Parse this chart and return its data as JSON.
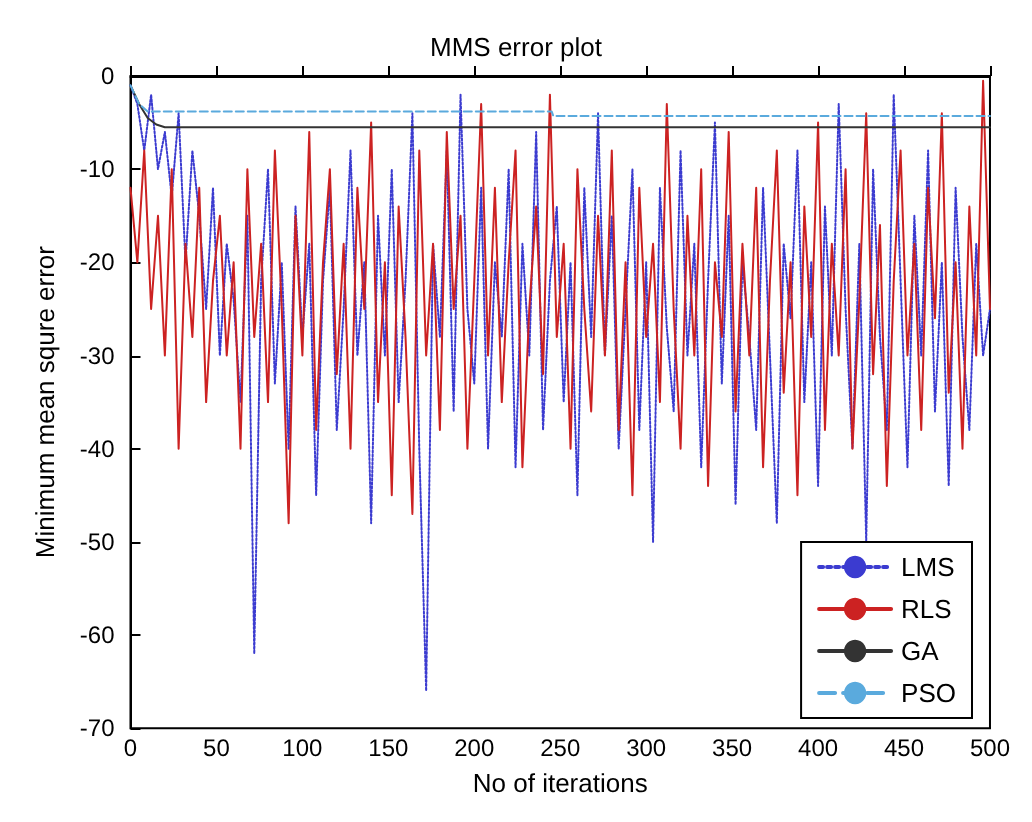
{
  "chart_data": {
    "type": "line",
    "title": "MMS error plot",
    "xlabel": "No of iterations",
    "ylabel": "Minimum mean squre error",
    "x": [
      0,
      4,
      8,
      12,
      16,
      20,
      24,
      28,
      32,
      36,
      40,
      44,
      48,
      52,
      56,
      60,
      64,
      68,
      72,
      76,
      80,
      84,
      88,
      92,
      96,
      100,
      104,
      108,
      112,
      116,
      120,
      124,
      128,
      132,
      136,
      140,
      144,
      148,
      152,
      156,
      160,
      164,
      168,
      172,
      176,
      180,
      184,
      188,
      192,
      196,
      200,
      204,
      208,
      212,
      216,
      220,
      224,
      228,
      232,
      236,
      240,
      244,
      248,
      252,
      256,
      260,
      264,
      268,
      272,
      276,
      280,
      284,
      288,
      292,
      296,
      300,
      304,
      308,
      312,
      316,
      320,
      324,
      328,
      332,
      336,
      340,
      344,
      348,
      352,
      356,
      360,
      364,
      368,
      372,
      376,
      380,
      384,
      388,
      392,
      396,
      400,
      404,
      408,
      412,
      416,
      420,
      424,
      428,
      432,
      436,
      440,
      444,
      448,
      452,
      456,
      460,
      464,
      468,
      472,
      476,
      480,
      484,
      488,
      492,
      496,
      500
    ],
    "series": [
      {
        "name": "LMS",
        "color": "#3b3bd0",
        "line_style": "dotted",
        "values": [
          -1,
          -3,
          -8,
          -2,
          -10,
          -6,
          -13,
          -4,
          -20,
          -8,
          -15,
          -25,
          -12,
          -30,
          -18,
          -24,
          -35,
          -15,
          -62,
          -22,
          -10,
          -33,
          -20,
          -40,
          -14,
          -28,
          -18,
          -45,
          -22,
          -12,
          -38,
          -25,
          -8,
          -30,
          -20,
          -48,
          -15,
          -30,
          -10,
          -35,
          -22,
          -4,
          -40,
          -66,
          -18,
          -28,
          -8,
          -36,
          -2,
          -25,
          -33,
          -12,
          -40,
          -20,
          -28,
          -10,
          -42,
          -18,
          -30,
          -6,
          -38,
          -22,
          -14,
          -35,
          -20,
          -45,
          -12,
          -28,
          -4,
          -30,
          -15,
          -40,
          -25,
          -10,
          -38,
          -20,
          -50,
          -12,
          -27,
          -36,
          -8,
          -30,
          -18,
          -42,
          -22,
          -5,
          -33,
          -15,
          -46,
          -20,
          -28,
          -38,
          -12,
          -30,
          -48,
          -18,
          -26,
          -8,
          -35,
          -20,
          -44,
          -14,
          -30,
          -3,
          -25,
          -40,
          -18,
          -50,
          -10,
          -28,
          -38,
          -2,
          -22,
          -42,
          -15,
          -30,
          -8,
          -36,
          -20,
          -44,
          -12,
          -28,
          -38,
          -18,
          -30,
          -25
        ]
      },
      {
        "name": "RLS",
        "color": "#cc2222",
        "line_style": "solid",
        "values": [
          -12,
          -20,
          -8,
          -25,
          -15,
          -30,
          -10,
          -40,
          -18,
          -28,
          -12,
          -35,
          -22,
          -15,
          -30,
          -20,
          -40,
          -10,
          -28,
          -18,
          -35,
          -8,
          -25,
          -48,
          -15,
          -30,
          -6,
          -38,
          -20,
          -10,
          -32,
          -18,
          -40,
          -12,
          -25,
          -5,
          -35,
          -20,
          -45,
          -14,
          -28,
          -47,
          -8,
          -30,
          -18,
          -38,
          -6,
          -25,
          -15,
          -40,
          -22,
          -3,
          -30,
          -12,
          -35,
          -20,
          -8,
          -42,
          -25,
          -14,
          -32,
          -2,
          -28,
          -18,
          -40,
          -10,
          -25,
          -36,
          -15,
          -30,
          -8,
          -38,
          -20,
          -45,
          -12,
          -28,
          -18,
          -35,
          -3,
          -25,
          -40,
          -15,
          -30,
          -10,
          -44,
          -20,
          -28,
          -6,
          -36,
          -18,
          -30,
          -12,
          -42,
          -22,
          -8,
          -34,
          -20,
          -45,
          -14,
          -28,
          -5,
          -38,
          -18,
          -30,
          -10,
          -40,
          -24,
          -4,
          -32,
          -16,
          -44,
          -22,
          -8,
          -30,
          -18,
          -38,
          -12,
          -26,
          -4,
          -34,
          -20,
          -40,
          -14,
          -30,
          -0.5,
          -25
        ]
      },
      {
        "name": "GA",
        "color": "#333333",
        "line_style": "solid",
        "x": [
          0,
          5,
          10,
          15,
          20,
          500
        ],
        "values": [
          -1,
          -3,
          -4.5,
          -5.2,
          -5.5,
          -5.5
        ]
      },
      {
        "name": "PSO",
        "color": "#5aaadd",
        "line_style": "dashed",
        "x": [
          0,
          5,
          10,
          15,
          245,
          246,
          500
        ],
        "values": [
          -1,
          -3,
          -3.8,
          -3.8,
          -3.8,
          -4.3,
          -4.3
        ]
      }
    ],
    "xlim": [
      0,
      500
    ],
    "xticks": [
      0,
      50,
      100,
      150,
      200,
      250,
      300,
      350,
      400,
      450,
      500
    ],
    "ylim": [
      -70,
      0
    ],
    "yticks": [
      -70,
      -60,
      -50,
      -40,
      -30,
      -20,
      -10,
      0
    ],
    "grid": false,
    "legend": "bottom right",
    "marker": "none"
  }
}
